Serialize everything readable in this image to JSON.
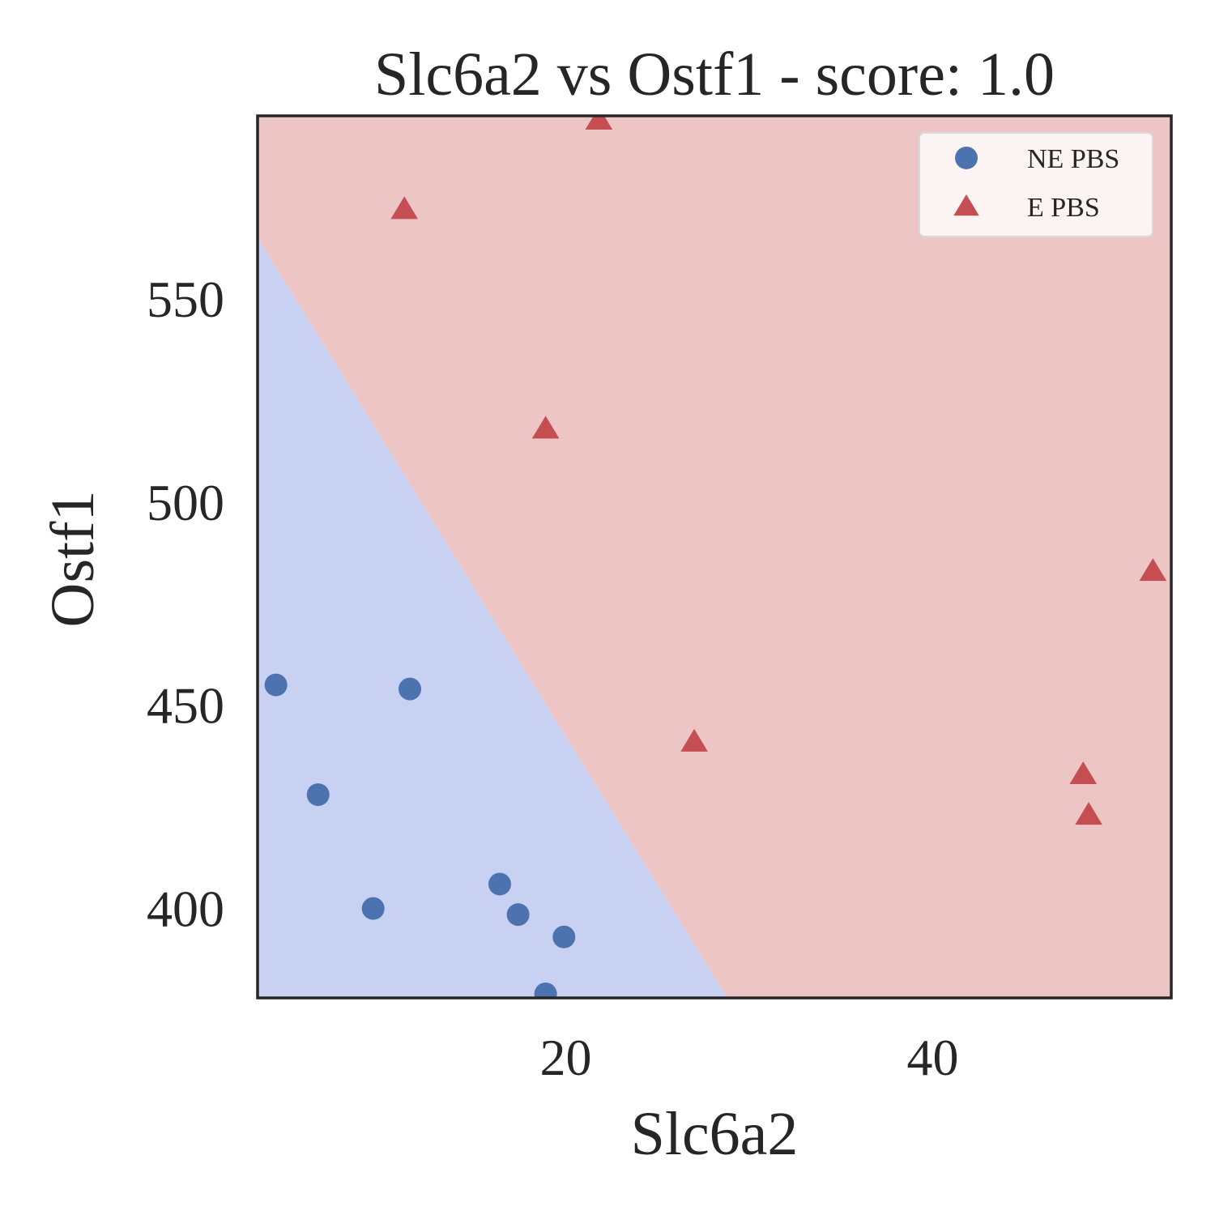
{
  "chart_data": {
    "type": "scatter",
    "title": "Slc6a2 vs Ostf1 - score: 1.0",
    "xlabel": "Slc6a2",
    "ylabel": "Ostf1",
    "xlim": [
      3.2,
      53.0
    ],
    "ylim": [
      378.0,
      595.0
    ],
    "x_ticks": [
      20,
      40
    ],
    "y_ticks": [
      400,
      450,
      500,
      550
    ],
    "grid": false,
    "legend_position": "top-right",
    "decision_boundary": {
      "line": [
        [
          3.2,
          565.0
        ],
        [
          28.8,
          378.0
        ]
      ],
      "colors": {
        "below": "#c9d1f2",
        "above": "#eec5c5"
      }
    },
    "series": [
      {
        "name": "NE PBS",
        "marker": "circle",
        "color": "#4c72b0",
        "points": [
          [
            4.2,
            455
          ],
          [
            6.5,
            428
          ],
          [
            9.5,
            400
          ],
          [
            11.5,
            454
          ],
          [
            16.4,
            406
          ],
          [
            17.4,
            398.5
          ],
          [
            19.9,
            393
          ],
          [
            18.9,
            379
          ]
        ]
      },
      {
        "name": "E PBS",
        "marker": "triangle",
        "color": "#c44e52",
        "points": [
          [
            11.2,
            572
          ],
          [
            21.8,
            594
          ],
          [
            18.9,
            518
          ],
          [
            27.0,
            441
          ],
          [
            48.2,
            433
          ],
          [
            48.5,
            423
          ],
          [
            52.0,
            483
          ]
        ]
      }
    ]
  }
}
